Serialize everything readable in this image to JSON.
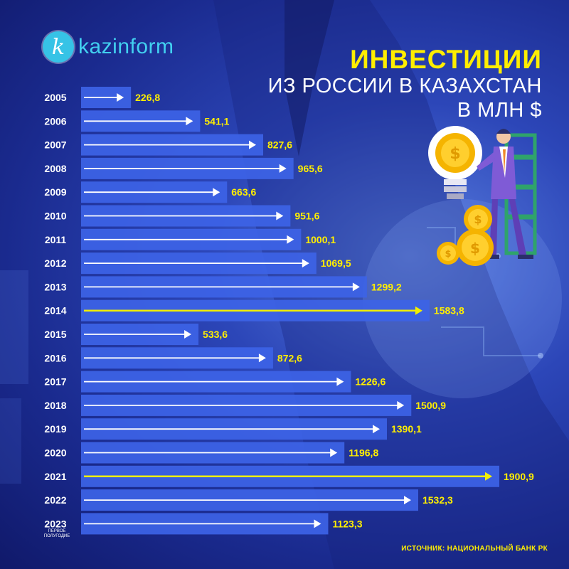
{
  "brand": {
    "logo_letter": "k",
    "name": "kazinform"
  },
  "title": {
    "line1": "ИНВЕСТИЦИИ",
    "line2": "ИЗ РОССИИ В КАЗАХСТАН",
    "line3": "В МЛН $"
  },
  "note": "ПЕРВОЕ ПОЛУГОДИЕ",
  "source": "ИСТОЧНИК: НАЦИОНАЛЬНЫЙ БАНК РК",
  "colors": {
    "bar": "#3d63e6",
    "arrow": "#ffffff",
    "highlight_arrow": "#f2ef00",
    "value_text": "#ffee00",
    "year_text": "#ffffff"
  },
  "chart_data": {
    "type": "bar",
    "orientation": "horizontal",
    "categories": [
      "2005",
      "2006",
      "2007",
      "2008",
      "2009",
      "2010",
      "2011",
      "2012",
      "2013",
      "2014",
      "2015",
      "2016",
      "2017",
      "2018",
      "2019",
      "2020",
      "2021",
      "2022",
      "2023"
    ],
    "values": [
      226.8,
      541.1,
      827.6,
      965.6,
      663.6,
      951.6,
      1000.1,
      1069.5,
      1299.2,
      1583.8,
      533.6,
      872.6,
      1226.6,
      1500.9,
      1390.1,
      1196.8,
      1900.9,
      1532.3,
      1123.3
    ],
    "value_labels": [
      "226,8",
      "541,1",
      "827,6",
      "965,6",
      "663,6",
      "951,6",
      "1000,1",
      "1069,5",
      "1299,2",
      "1583,8",
      "533,6",
      "872,6",
      "1226,6",
      "1500,9",
      "1390,1",
      "1196,8",
      "1900,9",
      "1532,3",
      "1123,3"
    ],
    "highlighted": [
      "2014",
      "2021"
    ],
    "title": "ИНВЕСТИЦИИ ИЗ РОССИИ В КАЗАХСТАН В МЛН $",
    "xlabel": "",
    "ylabel": "",
    "xlim": [
      0,
      1900.9
    ]
  }
}
